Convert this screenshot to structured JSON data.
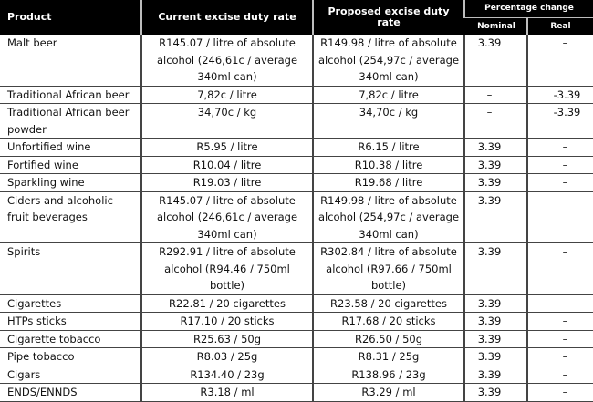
{
  "table": {
    "headers": {
      "product": "Product",
      "current": "Current excise duty rate",
      "proposed": "Proposed excise duty rate",
      "percentage_change": "Percentage change",
      "nominal": "Nominal",
      "real": "Real"
    },
    "rows": [
      {
        "product": "Malt beer",
        "current": "R145.07 / litre of absolute alcohol (246,61c / average 340ml can)",
        "proposed": "R149.98 / litre of absolute alcohol (254,97c / average 340ml can)",
        "nominal": "3.39",
        "real": "–"
      },
      {
        "product": "Traditional African beer",
        "current": "7,82c / litre",
        "proposed": "7,82c / litre",
        "nominal": "–",
        "real": "-3.39"
      },
      {
        "product": "Traditional African beer powder",
        "current": "34,70c / kg",
        "proposed": "34,70c / kg",
        "nominal": "–",
        "real": "-3.39"
      },
      {
        "product": "Unfortified wine",
        "current": "R5.95 / litre",
        "proposed": "R6.15 / litre",
        "nominal": "3.39",
        "real": "–"
      },
      {
        "product": "Fortified wine",
        "current": "R10.04 / litre",
        "proposed": "R10.38 / litre",
        "nominal": "3.39",
        "real": "–"
      },
      {
        "product": "Sparkling wine",
        "current": "R19.03 / litre",
        "proposed": "R19.68 / litre",
        "nominal": "3.39",
        "real": "–"
      },
      {
        "product": "Ciders and alcoholic fruit beverages",
        "current": "R145.07 / litre of absolute alcohol (246,61c / average 340ml can)",
        "proposed": "R149.98 / litre of absolute alcohol (254,97c / average 340ml can)",
        "nominal": "3.39",
        "real": "–"
      },
      {
        "product": "Spirits",
        "current": "R292.91 / litre of absolute alcohol (R94.46 / 750ml bottle)",
        "proposed": "R302.84 / litre of absolute alcohol (R97.66 / 750ml bottle)",
        "nominal": "3.39",
        "real": "–"
      },
      {
        "product": "Cigarettes",
        "current": "R22.81 / 20 cigarettes",
        "proposed": "R23.58 / 20 cigarettes",
        "nominal": "3.39",
        "real": "–"
      },
      {
        "product": "HTPs sticks",
        "current": "R17.10 / 20 sticks",
        "proposed": "R17.68 / 20 sticks",
        "nominal": "3.39",
        "real": "–"
      },
      {
        "product": "Cigarette tobacco",
        "current": "R25.63 / 50g",
        "proposed": "R26.50 / 50g",
        "nominal": "3.39",
        "real": "–"
      },
      {
        "product": "Pipe tobacco",
        "current": "R8.03 / 25g",
        "proposed": "R8.31 / 25g",
        "nominal": "3.39",
        "real": "–"
      },
      {
        "product": "Cigars",
        "current": "R134.40 / 23g",
        "proposed": "R138.96 / 23g",
        "nominal": "3.39",
        "real": "–"
      },
      {
        "product": "ENDS/ENNDS",
        "current": "R3.18 / ml",
        "proposed": "R3.29 / ml",
        "nominal": "3.39",
        "real": "–"
      }
    ]
  }
}
